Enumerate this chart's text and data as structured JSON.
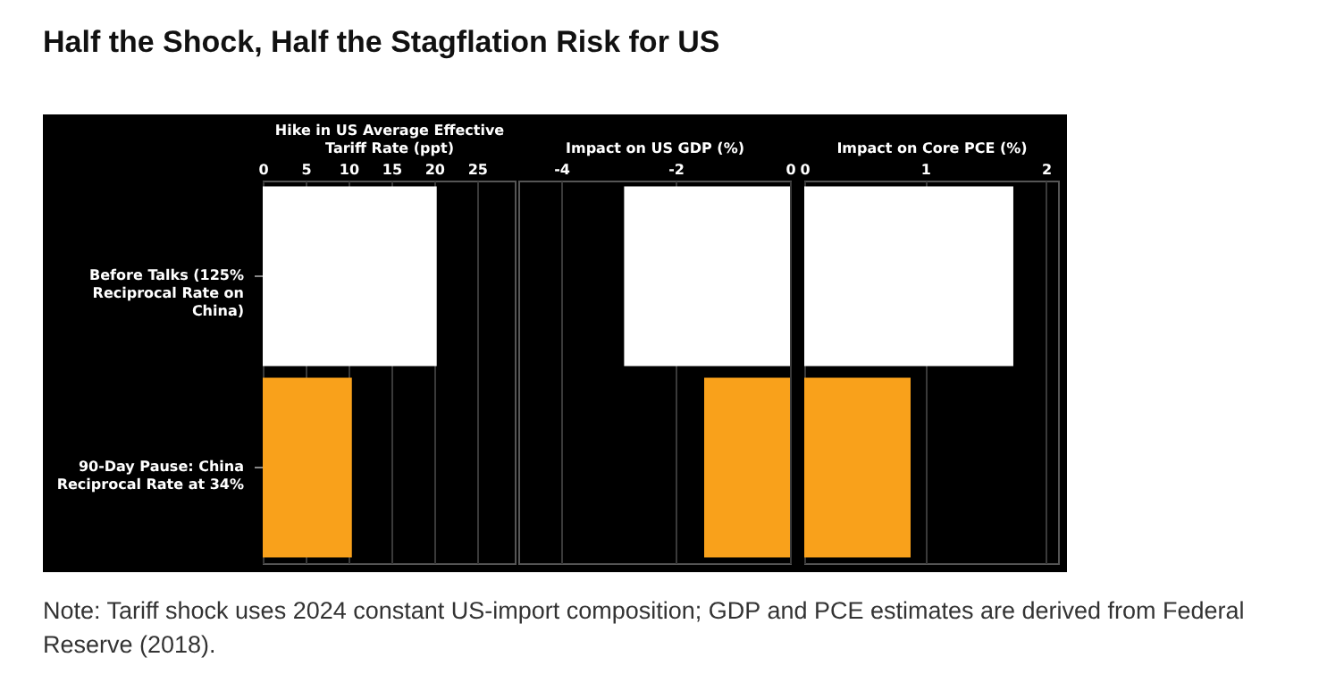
{
  "chart_data": [
    {
      "type": "bar",
      "orientation": "horizontal",
      "title": "Half the Shock, Half the Stagflation Risk for US",
      "xlabel": "Hike in US Average Effective Tariff Rate (ppt)",
      "categories": [
        "Before Talks (125% Reciprocal Rate on China)",
        "90-Day Pause: China Reciprocal Rate at 34%"
      ],
      "values": [
        20.3,
        10.4
      ],
      "colors": [
        "#ffffff",
        "#f9a11b"
      ],
      "xlim": [
        0,
        29.4
      ],
      "xticks": [
        0,
        5,
        10,
        15,
        20,
        25
      ],
      "grid": "x",
      "annotations": [
        "Note: Tariff shock uses 2024 constant US-import composition; GDP and PCE estimates are derived from Federal Reserve (2018)."
      ]
    },
    {
      "type": "bar",
      "orientation": "horizontal",
      "xlabel": "Impact on US GDP (%)",
      "categories": [
        null,
        null
      ],
      "values": [
        -2.9,
        -1.5
      ],
      "colors": [
        "#ffffff",
        "#f9a11b"
      ],
      "xlim": [
        -4.75,
        0
      ],
      "xticks": [
        -4,
        -2,
        0
      ],
      "grid": "x",
      "tick_labels": "x"
    },
    {
      "type": "bar",
      "orientation": "horizontal",
      "xlabel": "Impact on Core PCE (%)",
      "categories": [
        null,
        null
      ],
      "values": [
        1.73,
        0.88
      ],
      "colors": [
        "#ffffff",
        "#f9a11b"
      ],
      "xlim": [
        0,
        2.1
      ],
      "xticks": [
        0,
        1,
        2
      ],
      "grid": "x",
      "tick_labels": "x"
    }
  ]
}
